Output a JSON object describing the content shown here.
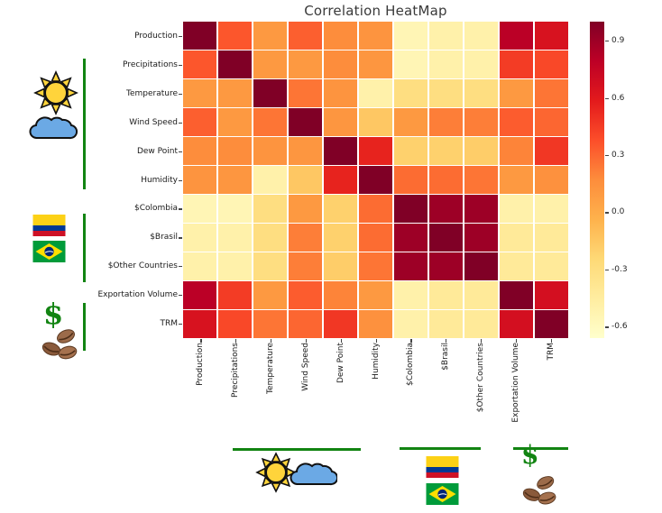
{
  "title": "Correlation HeatMap",
  "colors": {
    "accent_green": "#128412",
    "colorbar_top": "#800026",
    "colorbar_bottom": "#ffffcc",
    "label_text": "#1a1a1a"
  },
  "decorations": {
    "dollar_symbol": "$",
    "left_icons": [
      "sun-cloud-icon",
      "colombia-flag",
      "brazil-flag",
      "dollar-icon",
      "coffee-beans-icon"
    ],
    "bottom_icons": [
      "sun-cloud-icon",
      "colombia-flag",
      "brazil-flag",
      "dollar-icon",
      "coffee-beans-icon"
    ]
  },
  "chart_data": {
    "type": "heatmap",
    "title": "Correlation HeatMap",
    "labels": [
      "Production",
      "Precipitations",
      "Temperature",
      "Wind Speed",
      "Dew Point",
      "Humidity",
      "$Colombia",
      "$Brasil",
      "$Other Countries",
      "Exportation Volume",
      "TRM"
    ],
    "matrix": [
      [
        1.0,
        0.35,
        0.1,
        0.32,
        0.17,
        0.13,
        -0.55,
        -0.5,
        -0.5,
        0.8,
        0.65
      ],
      [
        0.35,
        1.0,
        0.1,
        0.1,
        0.17,
        0.12,
        -0.55,
        -0.5,
        -0.5,
        0.45,
        0.4
      ],
      [
        0.1,
        0.1,
        1.0,
        0.25,
        0.13,
        -0.5,
        -0.3,
        -0.3,
        -0.3,
        0.1,
        0.25
      ],
      [
        0.32,
        0.1,
        0.25,
        1.0,
        0.12,
        -0.15,
        0.1,
        0.22,
        0.22,
        0.33,
        0.3
      ],
      [
        0.17,
        0.17,
        0.13,
        0.12,
        1.0,
        0.55,
        -0.2,
        -0.2,
        -0.18,
        0.2,
        0.47
      ],
      [
        0.13,
        0.12,
        -0.5,
        -0.15,
        0.55,
        1.0,
        0.28,
        0.28,
        0.25,
        0.1,
        0.15
      ],
      [
        -0.55,
        -0.55,
        -0.3,
        0.1,
        -0.2,
        0.28,
        1.0,
        0.9,
        0.9,
        -0.5,
        -0.5
      ],
      [
        -0.5,
        -0.5,
        -0.3,
        0.22,
        -0.2,
        0.28,
        0.9,
        1.0,
        0.9,
        -0.42,
        -0.42
      ],
      [
        -0.5,
        -0.5,
        -0.3,
        0.22,
        -0.18,
        0.25,
        0.9,
        0.9,
        1.0,
        -0.42,
        -0.42
      ],
      [
        0.8,
        0.45,
        0.1,
        0.33,
        0.2,
        0.1,
        -0.5,
        -0.42,
        -0.42,
        1.0,
        0.67
      ],
      [
        0.65,
        0.4,
        0.25,
        0.3,
        0.47,
        0.15,
        -0.5,
        -0.42,
        -0.42,
        0.67,
        1.0
      ]
    ],
    "colormap": "YlOrRd",
    "vmin": -0.66,
    "vmax": 1.0,
    "grid_lines": true,
    "legend_position": "right-colorbar",
    "colorbar_ticks": [
      {
        "value": 0.9,
        "label": "0.9"
      },
      {
        "value": 0.6,
        "label": "0.6"
      },
      {
        "value": 0.3,
        "label": "0.3"
      },
      {
        "value": 0.0,
        "label": "0.0"
      },
      {
        "value": -0.3,
        "label": "-0.3"
      },
      {
        "value": -0.6,
        "label": "-0.6"
      }
    ],
    "groups": [
      {
        "name": "weather",
        "icon": "sun-cloud-icon",
        "rows": [
          "Precipitations",
          "Temperature",
          "Wind Speed",
          "Dew Point",
          "Humidity"
        ]
      },
      {
        "name": "currency",
        "icon": "colombia-brazil-flags",
        "rows": [
          "$Colombia",
          "$Brasil",
          "$Other Countries"
        ]
      },
      {
        "name": "coffee-export",
        "icon": "dollar-coffee-beans",
        "rows": [
          "Exportation Volume",
          "TRM"
        ]
      }
    ]
  }
}
